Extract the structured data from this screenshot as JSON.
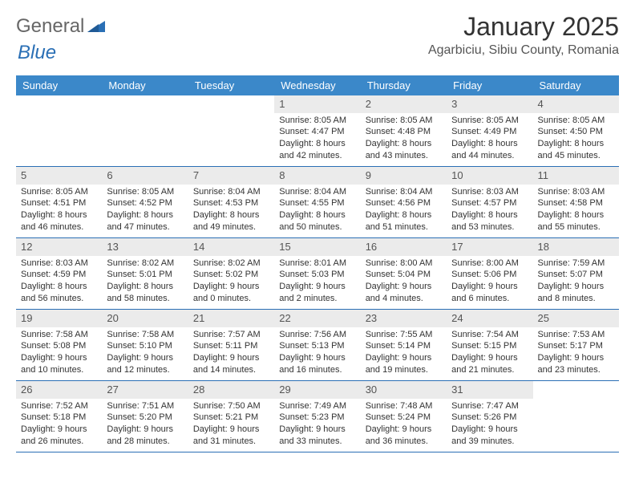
{
  "logo": {
    "text_gray": "General",
    "text_blue": "Blue"
  },
  "title": "January 2025",
  "location": "Agarbiciu, Sibiu County, Romania",
  "header_bg": "#3b88c9",
  "daynum_bg": "#ebebeb",
  "border_color": "#2a6fb5",
  "day_names": [
    "Sunday",
    "Monday",
    "Tuesday",
    "Wednesday",
    "Thursday",
    "Friday",
    "Saturday"
  ],
  "weeks": [
    [
      {
        "empty": true
      },
      {
        "empty": true
      },
      {
        "empty": true
      },
      {
        "day": "1",
        "sunrise": "Sunrise: 8:05 AM",
        "sunset": "Sunset: 4:47 PM",
        "daylight1": "Daylight: 8 hours",
        "daylight2": "and 42 minutes."
      },
      {
        "day": "2",
        "sunrise": "Sunrise: 8:05 AM",
        "sunset": "Sunset: 4:48 PM",
        "daylight1": "Daylight: 8 hours",
        "daylight2": "and 43 minutes."
      },
      {
        "day": "3",
        "sunrise": "Sunrise: 8:05 AM",
        "sunset": "Sunset: 4:49 PM",
        "daylight1": "Daylight: 8 hours",
        "daylight2": "and 44 minutes."
      },
      {
        "day": "4",
        "sunrise": "Sunrise: 8:05 AM",
        "sunset": "Sunset: 4:50 PM",
        "daylight1": "Daylight: 8 hours",
        "daylight2": "and 45 minutes."
      }
    ],
    [
      {
        "day": "5",
        "sunrise": "Sunrise: 8:05 AM",
        "sunset": "Sunset: 4:51 PM",
        "daylight1": "Daylight: 8 hours",
        "daylight2": "and 46 minutes."
      },
      {
        "day": "6",
        "sunrise": "Sunrise: 8:05 AM",
        "sunset": "Sunset: 4:52 PM",
        "daylight1": "Daylight: 8 hours",
        "daylight2": "and 47 minutes."
      },
      {
        "day": "7",
        "sunrise": "Sunrise: 8:04 AM",
        "sunset": "Sunset: 4:53 PM",
        "daylight1": "Daylight: 8 hours",
        "daylight2": "and 49 minutes."
      },
      {
        "day": "8",
        "sunrise": "Sunrise: 8:04 AM",
        "sunset": "Sunset: 4:55 PM",
        "daylight1": "Daylight: 8 hours",
        "daylight2": "and 50 minutes."
      },
      {
        "day": "9",
        "sunrise": "Sunrise: 8:04 AM",
        "sunset": "Sunset: 4:56 PM",
        "daylight1": "Daylight: 8 hours",
        "daylight2": "and 51 minutes."
      },
      {
        "day": "10",
        "sunrise": "Sunrise: 8:03 AM",
        "sunset": "Sunset: 4:57 PM",
        "daylight1": "Daylight: 8 hours",
        "daylight2": "and 53 minutes."
      },
      {
        "day": "11",
        "sunrise": "Sunrise: 8:03 AM",
        "sunset": "Sunset: 4:58 PM",
        "daylight1": "Daylight: 8 hours",
        "daylight2": "and 55 minutes."
      }
    ],
    [
      {
        "day": "12",
        "sunrise": "Sunrise: 8:03 AM",
        "sunset": "Sunset: 4:59 PM",
        "daylight1": "Daylight: 8 hours",
        "daylight2": "and 56 minutes."
      },
      {
        "day": "13",
        "sunrise": "Sunrise: 8:02 AM",
        "sunset": "Sunset: 5:01 PM",
        "daylight1": "Daylight: 8 hours",
        "daylight2": "and 58 minutes."
      },
      {
        "day": "14",
        "sunrise": "Sunrise: 8:02 AM",
        "sunset": "Sunset: 5:02 PM",
        "daylight1": "Daylight: 9 hours",
        "daylight2": "and 0 minutes."
      },
      {
        "day": "15",
        "sunrise": "Sunrise: 8:01 AM",
        "sunset": "Sunset: 5:03 PM",
        "daylight1": "Daylight: 9 hours",
        "daylight2": "and 2 minutes."
      },
      {
        "day": "16",
        "sunrise": "Sunrise: 8:00 AM",
        "sunset": "Sunset: 5:04 PM",
        "daylight1": "Daylight: 9 hours",
        "daylight2": "and 4 minutes."
      },
      {
        "day": "17",
        "sunrise": "Sunrise: 8:00 AM",
        "sunset": "Sunset: 5:06 PM",
        "daylight1": "Daylight: 9 hours",
        "daylight2": "and 6 minutes."
      },
      {
        "day": "18",
        "sunrise": "Sunrise: 7:59 AM",
        "sunset": "Sunset: 5:07 PM",
        "daylight1": "Daylight: 9 hours",
        "daylight2": "and 8 minutes."
      }
    ],
    [
      {
        "day": "19",
        "sunrise": "Sunrise: 7:58 AM",
        "sunset": "Sunset: 5:08 PM",
        "daylight1": "Daylight: 9 hours",
        "daylight2": "and 10 minutes."
      },
      {
        "day": "20",
        "sunrise": "Sunrise: 7:58 AM",
        "sunset": "Sunset: 5:10 PM",
        "daylight1": "Daylight: 9 hours",
        "daylight2": "and 12 minutes."
      },
      {
        "day": "21",
        "sunrise": "Sunrise: 7:57 AM",
        "sunset": "Sunset: 5:11 PM",
        "daylight1": "Daylight: 9 hours",
        "daylight2": "and 14 minutes."
      },
      {
        "day": "22",
        "sunrise": "Sunrise: 7:56 AM",
        "sunset": "Sunset: 5:13 PM",
        "daylight1": "Daylight: 9 hours",
        "daylight2": "and 16 minutes."
      },
      {
        "day": "23",
        "sunrise": "Sunrise: 7:55 AM",
        "sunset": "Sunset: 5:14 PM",
        "daylight1": "Daylight: 9 hours",
        "daylight2": "and 19 minutes."
      },
      {
        "day": "24",
        "sunrise": "Sunrise: 7:54 AM",
        "sunset": "Sunset: 5:15 PM",
        "daylight1": "Daylight: 9 hours",
        "daylight2": "and 21 minutes."
      },
      {
        "day": "25",
        "sunrise": "Sunrise: 7:53 AM",
        "sunset": "Sunset: 5:17 PM",
        "daylight1": "Daylight: 9 hours",
        "daylight2": "and 23 minutes."
      }
    ],
    [
      {
        "day": "26",
        "sunrise": "Sunrise: 7:52 AM",
        "sunset": "Sunset: 5:18 PM",
        "daylight1": "Daylight: 9 hours",
        "daylight2": "and 26 minutes."
      },
      {
        "day": "27",
        "sunrise": "Sunrise: 7:51 AM",
        "sunset": "Sunset: 5:20 PM",
        "daylight1": "Daylight: 9 hours",
        "daylight2": "and 28 minutes."
      },
      {
        "day": "28",
        "sunrise": "Sunrise: 7:50 AM",
        "sunset": "Sunset: 5:21 PM",
        "daylight1": "Daylight: 9 hours",
        "daylight2": "and 31 minutes."
      },
      {
        "day": "29",
        "sunrise": "Sunrise: 7:49 AM",
        "sunset": "Sunset: 5:23 PM",
        "daylight1": "Daylight: 9 hours",
        "daylight2": "and 33 minutes."
      },
      {
        "day": "30",
        "sunrise": "Sunrise: 7:48 AM",
        "sunset": "Sunset: 5:24 PM",
        "daylight1": "Daylight: 9 hours",
        "daylight2": "and 36 minutes."
      },
      {
        "day": "31",
        "sunrise": "Sunrise: 7:47 AM",
        "sunset": "Sunset: 5:26 PM",
        "daylight1": "Daylight: 9 hours",
        "daylight2": "and 39 minutes."
      },
      {
        "empty": true
      }
    ]
  ]
}
